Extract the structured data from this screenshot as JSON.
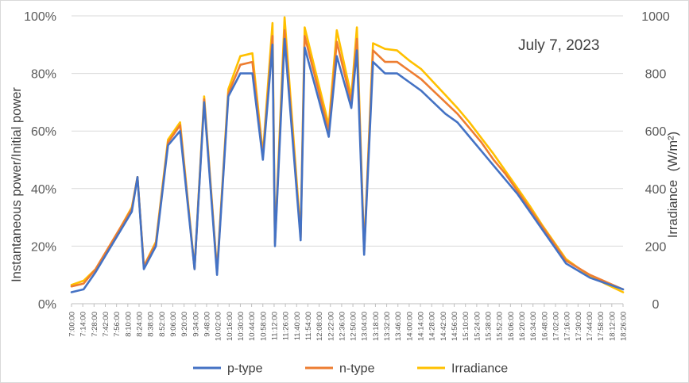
{
  "chart_data": {
    "type": "line",
    "annotation": "July 7, 2023",
    "ylabel_left": "Instantaneous power/Initial power",
    "ylabel_right_main": "Irradiance",
    "ylabel_right_unit": "(W/m²)",
    "xlabel": "",
    "xlim": [
      "7:00:00",
      "18:26:00"
    ],
    "ylim_left": [
      0,
      100
    ],
    "ylim_right": [
      0,
      1000
    ],
    "y_left_ticks": [
      "0%",
      "20%",
      "40%",
      "60%",
      "80%",
      "100%"
    ],
    "y_right_ticks": [
      "0",
      "200",
      "400",
      "600",
      "800",
      "1000"
    ],
    "x_tick_labels": [
      "7:00:00",
      "7:14:00",
      "7:28:00",
      "7:42:00",
      "7:56:00",
      "8:10:00",
      "8:24:00",
      "8:38:00",
      "8:52:00",
      "9:06:00",
      "9:20:00",
      "9:34:00",
      "9:48:00",
      "10:02:00",
      "10:16:00",
      "10:30:00",
      "10:44:00",
      "10:58:00",
      "11:12:00",
      "11:26:00",
      "11:40:00",
      "11:54:00",
      "12:08:00",
      "12:22:00",
      "12:36:00",
      "12:50:00",
      "13:04:00",
      "13:18:00",
      "13:32:00",
      "13:46:00",
      "14:00:00",
      "14:14:00",
      "14:28:00",
      "14:42:00",
      "14:56:00",
      "15:10:00",
      "15:24:00",
      "15:38:00",
      "15:52:00",
      "16:06:00",
      "16:20:00",
      "16:34:00",
      "16:48:00",
      "17:02:00",
      "17:16:00",
      "17:30:00",
      "17:44:00",
      "17:58:00",
      "18:12:00",
      "18:26:00"
    ],
    "x_time_labels": [
      "7:00",
      "7:14",
      "7:28",
      "7:42",
      "7:56",
      "8:10",
      "8:24",
      "8:38",
      "8:52",
      "9:06",
      "9:20",
      "9:34",
      "9:48",
      "10:02",
      "10:16",
      "10:30",
      "10:44",
      "10:58",
      "11:12",
      "11:26",
      "11:40",
      "11:54",
      "12:08",
      "12:22",
      "12:36",
      "12:50",
      "13:04",
      "13:18",
      "13:32",
      "13:46",
      "14:00",
      "14:14",
      "14:28",
      "14:42",
      "14:56",
      "15:10",
      "15:24",
      "15:38",
      "15:52",
      "16:06",
      "16:20",
      "16:34",
      "16:48",
      "17:02",
      "17:16",
      "17:30",
      "17:44",
      "17:58",
      "18:12",
      "18:26"
    ],
    "legend_position": "bottom",
    "grid": "horizontal",
    "series": [
      {
        "name": "p-type",
        "axis": "left",
        "color": "#4472C4",
        "values": [
          4,
          5,
          11,
          18,
          25,
          32,
          44,
          12,
          20,
          55,
          60,
          12,
          70,
          10,
          72,
          80,
          80,
          50,
          90,
          20,
          92,
          22,
          89,
          58,
          86,
          68,
          88,
          17,
          84,
          80,
          80,
          77,
          74,
          70,
          66,
          63,
          58,
          53,
          48,
          43,
          38,
          32,
          26,
          20,
          14,
          9,
          5
        ]
      },
      {
        "name": "n-type",
        "axis": "left",
        "color": "#ED7D31",
        "values": [
          6,
          7,
          12,
          19,
          26,
          33,
          44,
          13,
          21,
          56,
          62,
          12,
          71,
          11,
          73,
          83,
          84,
          51,
          93,
          21,
          95,
          23,
          93,
          60,
          91,
          70,
          92,
          18,
          88,
          84,
          84,
          81,
          78,
          74,
          70,
          66,
          61,
          56,
          50,
          45,
          39,
          33,
          27,
          21,
          15,
          10,
          5
        ]
      },
      {
        "name": "Irradiance",
        "axis": "right",
        "color": "#FFC000",
        "values": [
          65,
          80,
          120,
          190,
          260,
          335,
          440,
          130,
          215,
          570,
          630,
          125,
          720,
          115,
          745,
          860,
          870,
          520,
          975,
          215,
          995,
          240,
          960,
          620,
          950,
          720,
          960,
          185,
          905,
          885,
          880,
          845,
          815,
          770,
          725,
          680,
          630,
          575,
          520,
          460,
          400,
          340,
          275,
          215,
          155,
          95,
          40
        ]
      }
    ],
    "times_in_series_order": [
      "7:00",
      "7:15",
      "7:30",
      "7:45",
      "8:00",
      "8:15",
      "8:22",
      "8:30",
      "8:45",
      "9:00",
      "9:15",
      "9:33",
      "9:45",
      "10:01",
      "10:15",
      "10:30",
      "10:45",
      "10:58",
      "11:10",
      "11:13",
      "11:25",
      "11:45",
      "11:50",
      "12:20",
      "12:30",
      "12:48",
      "12:55",
      "13:04",
      "13:15",
      "13:30",
      "13:45",
      "14:00",
      "14:15",
      "14:30",
      "14:45",
      "15:00",
      "15:15",
      "15:30",
      "15:45",
      "16:00",
      "16:15",
      "16:30",
      "16:45",
      "17:00",
      "17:15",
      "17:45",
      "18:26"
    ]
  }
}
